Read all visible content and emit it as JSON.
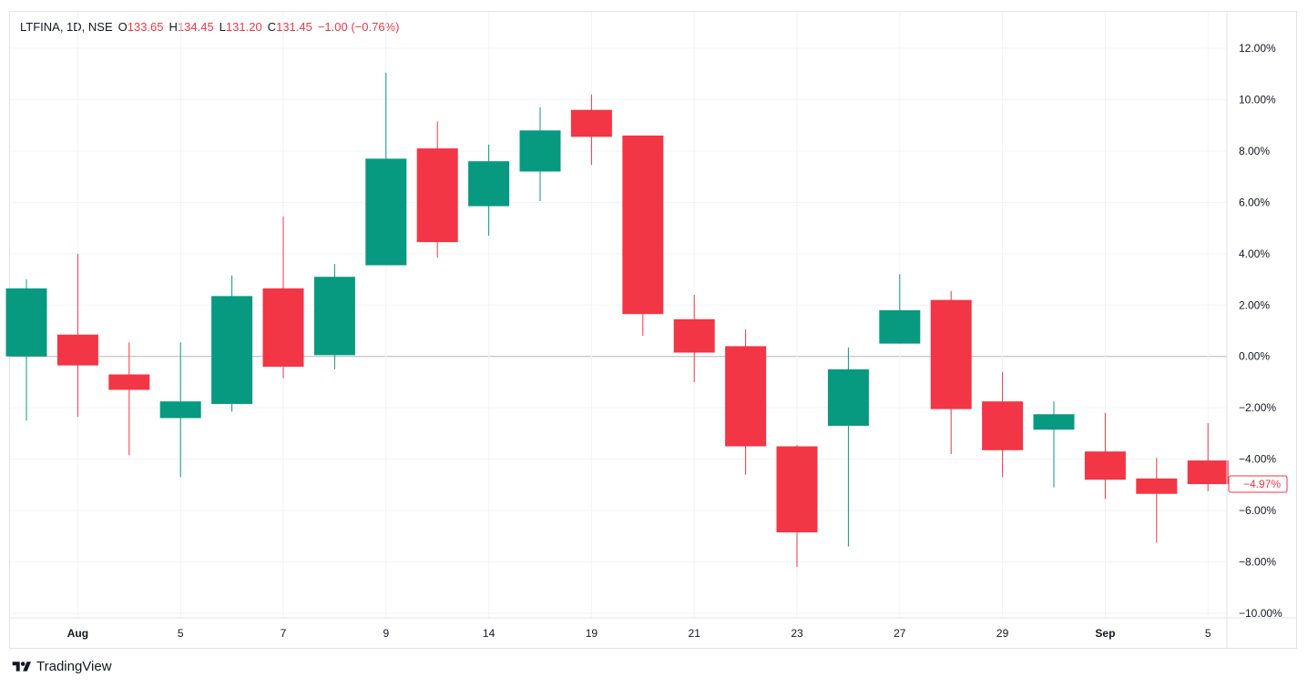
{
  "header": {
    "symbol": "LTFINA, 1D, NSE",
    "open_label": "O",
    "open_value": "133.65",
    "high_label": "H",
    "high_value": "134.45",
    "low_label": "L",
    "low_value": "131.20",
    "close_label": "C",
    "close_value": "131.45",
    "change": "−1.00 (−0.76%)"
  },
  "footer": {
    "brand": "TradingView"
  },
  "colors": {
    "up": "#089981",
    "down": "#f23645",
    "grid": "#f0f3fa",
    "zero_line": "#b2b5be",
    "axis_text": "#131722"
  },
  "chart_data": {
    "type": "candlestick",
    "unit": "percent",
    "ylim": [
      -10,
      12
    ],
    "y_ticks": [
      "12.00%",
      "10.00%",
      "8.00%",
      "6.00%",
      "4.00%",
      "2.00%",
      "0.00%",
      "−2.00%",
      "−4.00%",
      "−6.00%",
      "−8.00%",
      "−10.00%"
    ],
    "y_tick_values": [
      12,
      10,
      8,
      6,
      4,
      2,
      0,
      -2,
      -4,
      -6,
      -8,
      -10
    ],
    "x_tick_labels": [
      {
        "index": 1,
        "label": "Aug",
        "bold": true
      },
      {
        "index": 3,
        "label": "5",
        "bold": false
      },
      {
        "index": 5,
        "label": "7",
        "bold": false
      },
      {
        "index": 7,
        "label": "9",
        "bold": false
      },
      {
        "index": 9,
        "label": "14",
        "bold": false
      },
      {
        "index": 11,
        "label": "19",
        "bold": false
      },
      {
        "index": 13,
        "label": "21",
        "bold": false
      },
      {
        "index": 15,
        "label": "23",
        "bold": false
      },
      {
        "index": 17,
        "label": "27",
        "bold": false
      },
      {
        "index": 19,
        "label": "29",
        "bold": false
      },
      {
        "index": 21,
        "label": "Sep",
        "bold": true
      },
      {
        "index": 23,
        "label": "5",
        "bold": false
      }
    ],
    "last_value_label": "−4.97%",
    "last_value": -4.97,
    "candles": [
      {
        "open": 0.0,
        "high": 3.0,
        "low": -2.5,
        "close": 2.65
      },
      {
        "open": 0.85,
        "high": 4.0,
        "low": -2.35,
        "close": -0.35
      },
      {
        "open": -0.7,
        "high": 0.55,
        "low": -3.85,
        "close": -1.3
      },
      {
        "open": -2.4,
        "high": 0.55,
        "low": -4.7,
        "close": -1.75
      },
      {
        "open": -1.85,
        "high": 3.15,
        "low": -2.15,
        "close": 2.35
      },
      {
        "open": 2.65,
        "high": 5.45,
        "low": -0.85,
        "close": -0.4
      },
      {
        "open": 0.05,
        "high": 3.6,
        "low": -0.5,
        "close": 3.1
      },
      {
        "open": 3.55,
        "high": 11.05,
        "low": 3.55,
        "close": 7.7
      },
      {
        "open": 8.1,
        "high": 9.15,
        "low": 3.85,
        "close": 4.45
      },
      {
        "open": 5.85,
        "high": 8.25,
        "low": 4.7,
        "close": 7.6
      },
      {
        "open": 7.2,
        "high": 9.7,
        "low": 6.05,
        "close": 8.8
      },
      {
        "open": 9.6,
        "high": 10.2,
        "low": 7.45,
        "close": 8.55
      },
      {
        "open": 8.6,
        "high": 8.6,
        "low": 0.8,
        "close": 1.65
      },
      {
        "open": 1.45,
        "high": 2.4,
        "low": -1.0,
        "close": 0.15
      },
      {
        "open": 0.4,
        "high": 1.05,
        "low": -4.6,
        "close": -3.5
      },
      {
        "open": -3.5,
        "high": -3.45,
        "low": -8.2,
        "close": -6.85
      },
      {
        "open": -2.7,
        "high": 0.35,
        "low": -7.4,
        "close": -0.5
      },
      {
        "open": 0.5,
        "high": 3.2,
        "low": 0.5,
        "close": 1.8
      },
      {
        "open": 2.2,
        "high": 2.55,
        "low": -3.8,
        "close": -2.05
      },
      {
        "open": -1.75,
        "high": -0.6,
        "low": -4.7,
        "close": -3.65
      },
      {
        "open": -2.85,
        "high": -1.75,
        "low": -5.1,
        "close": -2.25
      },
      {
        "open": -3.7,
        "high": -2.2,
        "low": -5.55,
        "close": -4.8
      },
      {
        "open": -4.75,
        "high": -3.95,
        "low": -7.25,
        "close": -5.35
      },
      {
        "open": -4.05,
        "high": -2.6,
        "low": -5.25,
        "close": -4.97
      }
    ]
  }
}
